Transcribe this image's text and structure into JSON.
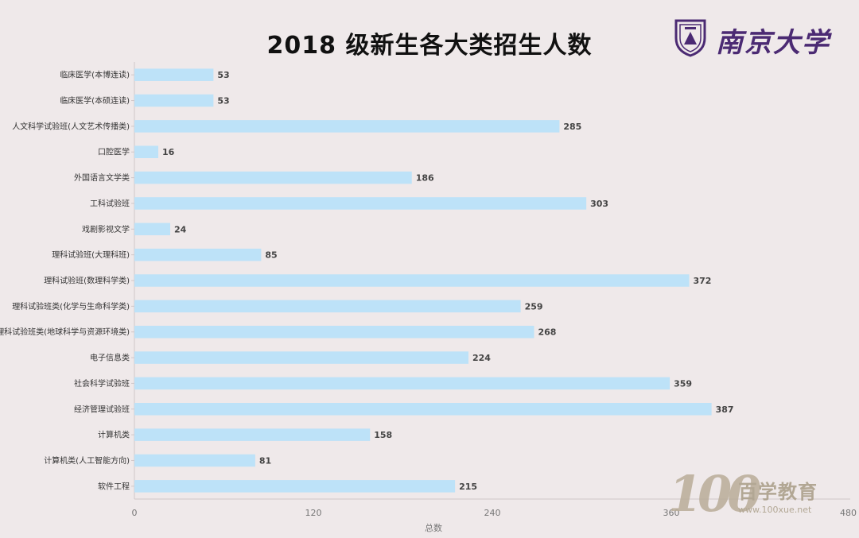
{
  "chart_data": {
    "type": "bar",
    "orientation": "horizontal",
    "title": "2018 级新生各大类招生人数",
    "xlabel": "总数",
    "ylabel": "",
    "xlim": [
      0,
      480
    ],
    "xticks": [
      0,
      120,
      240,
      360,
      480
    ],
    "grid": false,
    "categories": [
      "临床医学(本博连读)",
      "临床医学(本硕连读)",
      "人文科学试验班(人文艺术传播类)",
      "口腔医学",
      "外国语言文学类",
      "工科试验班",
      "戏剧影视文学",
      "理科试验班(大理科班)",
      "理科试验班(数理科学类)",
      "理科试验班类(化学与生命科学类)",
      "理科试验班类(地球科学与资源环境类)",
      "电子信息类",
      "社会科学试验班",
      "经济管理试验班",
      "计算机类",
      "计算机类(人工智能方向)",
      "软件工程"
    ],
    "values": [
      53,
      53,
      285,
      16,
      186,
      303,
      24,
      85,
      372,
      259,
      268,
      224,
      359,
      387,
      158,
      81,
      215
    ],
    "bar_color": "#bde2f8"
  },
  "logo": {
    "name": "南京大学"
  },
  "watermark": {
    "number": "100",
    "name": "百学教育",
    "url": "www.100xue.net"
  }
}
